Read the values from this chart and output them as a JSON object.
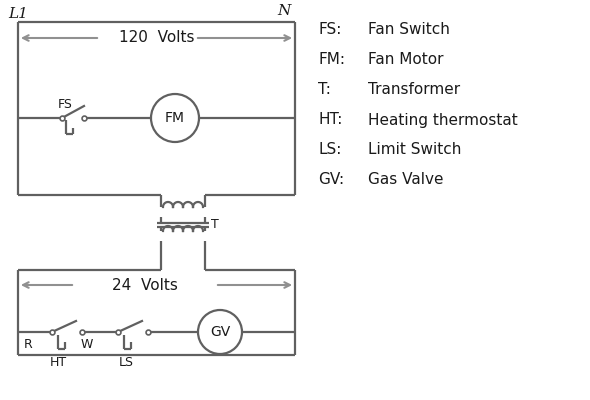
{
  "bg_color": "#ffffff",
  "line_color": "#606060",
  "text_color": "#1a1a1a",
  "legend_color": "#1a1a1a",
  "legend": {
    "FS": "Fan Switch",
    "FM": "Fan Motor",
    "T": "Transformer",
    "HT": "Heating thermostat",
    "LS": "Limit Switch",
    "GV": "Gas Valve"
  },
  "figsize": [
    5.9,
    4.0
  ],
  "dpi": 100
}
